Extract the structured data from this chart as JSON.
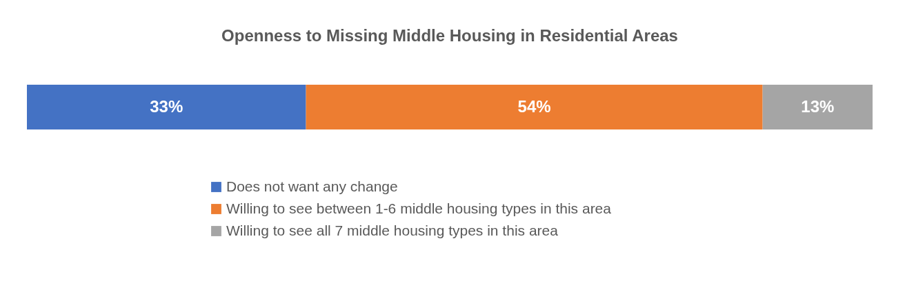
{
  "chart_data": {
    "type": "bar",
    "title": "Openness to Missing Middle Housing in Residential Areas",
    "orientation": "horizontal",
    "stacked": true,
    "categories": [
      null
    ],
    "legend": "bottom",
    "series": [
      {
        "name": "Does not want any change",
        "color": "#4472c4",
        "values": [
          33
        ],
        "value_labels": [
          "33%"
        ]
      },
      {
        "name": "Willing to see between 1-6 middle housing types in this area",
        "color": "#ed7d31",
        "values": [
          54
        ],
        "value_labels": [
          "54%"
        ]
      },
      {
        "name": "Willing to see all 7 middle housing types in this area",
        "color": "#a5a5a5",
        "values": [
          13
        ],
        "value_labels": [
          "13%"
        ]
      }
    ]
  }
}
